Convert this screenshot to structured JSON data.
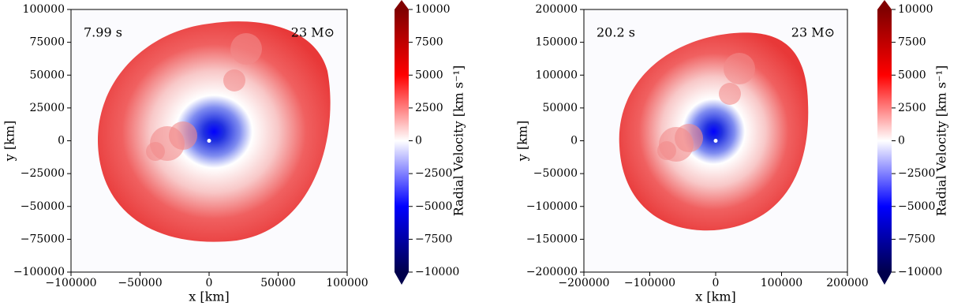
{
  "chart_data": [
    {
      "type": "image",
      "time_label": "7.99 s",
      "mass_label": "23 M⊙",
      "xlabel": "x [km]",
      "ylabel": "y [km]",
      "xlim": [
        -100000,
        100000
      ],
      "ylim": [
        -100000,
        100000
      ],
      "xticks": [
        {
          "value": -100000,
          "label": "−100000"
        },
        {
          "value": -50000,
          "label": "−50000"
        },
        0,
        50000,
        100000
      ],
      "yticks": [
        {
          "value": -100000,
          "label": "−100000"
        },
        {
          "value": -75000,
          "label": "−75000"
        },
        {
          "value": -50000,
          "label": "−50000"
        },
        {
          "value": -25000,
          "label": "−25000"
        },
        0,
        25000,
        50000,
        75000,
        100000
      ],
      "colorbar_label": "Radial Velocity [km s⁻¹]",
      "clim": [
        -10000,
        10000
      ],
      "cticks": [
        {
          "value": -10000,
          "label": "−10000"
        },
        {
          "value": -7500,
          "label": "−7500"
        },
        {
          "value": -5000,
          "label": "−5000"
        },
        {
          "value": -2500,
          "label": "−2500"
        },
        0,
        2500,
        5000,
        7500,
        10000
      ],
      "colormap": [
        "#00004c",
        "#0000ff",
        "#ffffff",
        "#ff0000",
        "#800000"
      ]
    },
    {
      "type": "image",
      "time_label": "20.2 s",
      "mass_label": "23 M⊙",
      "xlabel": "x [km]",
      "ylabel": "y [km]",
      "xlim": [
        -200000,
        200000
      ],
      "ylim": [
        -200000,
        200000
      ],
      "xticks": [
        {
          "value": -200000,
          "label": "−200000"
        },
        {
          "value": -100000,
          "label": "−100000"
        },
        0,
        100000,
        200000
      ],
      "yticks": [
        {
          "value": -200000,
          "label": "−200000"
        },
        {
          "value": -150000,
          "label": "−150000"
        },
        {
          "value": -100000,
          "label": "−100000"
        },
        {
          "value": -50000,
          "label": "−50000"
        },
        0,
        50000,
        100000,
        150000,
        200000
      ],
      "colorbar_label": "Radial Velocity [km s⁻¹]",
      "clim": [
        -10000,
        10000
      ],
      "cticks": [
        {
          "value": -10000,
          "label": "−10000"
        },
        {
          "value": -7500,
          "label": "−7500"
        },
        {
          "value": -5000,
          "label": "−5000"
        },
        {
          "value": -2500,
          "label": "−2500"
        },
        0,
        2500,
        5000,
        7500,
        10000
      ],
      "colormap": [
        "#00004c",
        "#0000ff",
        "#ffffff",
        "#ff0000",
        "#800000"
      ]
    }
  ]
}
